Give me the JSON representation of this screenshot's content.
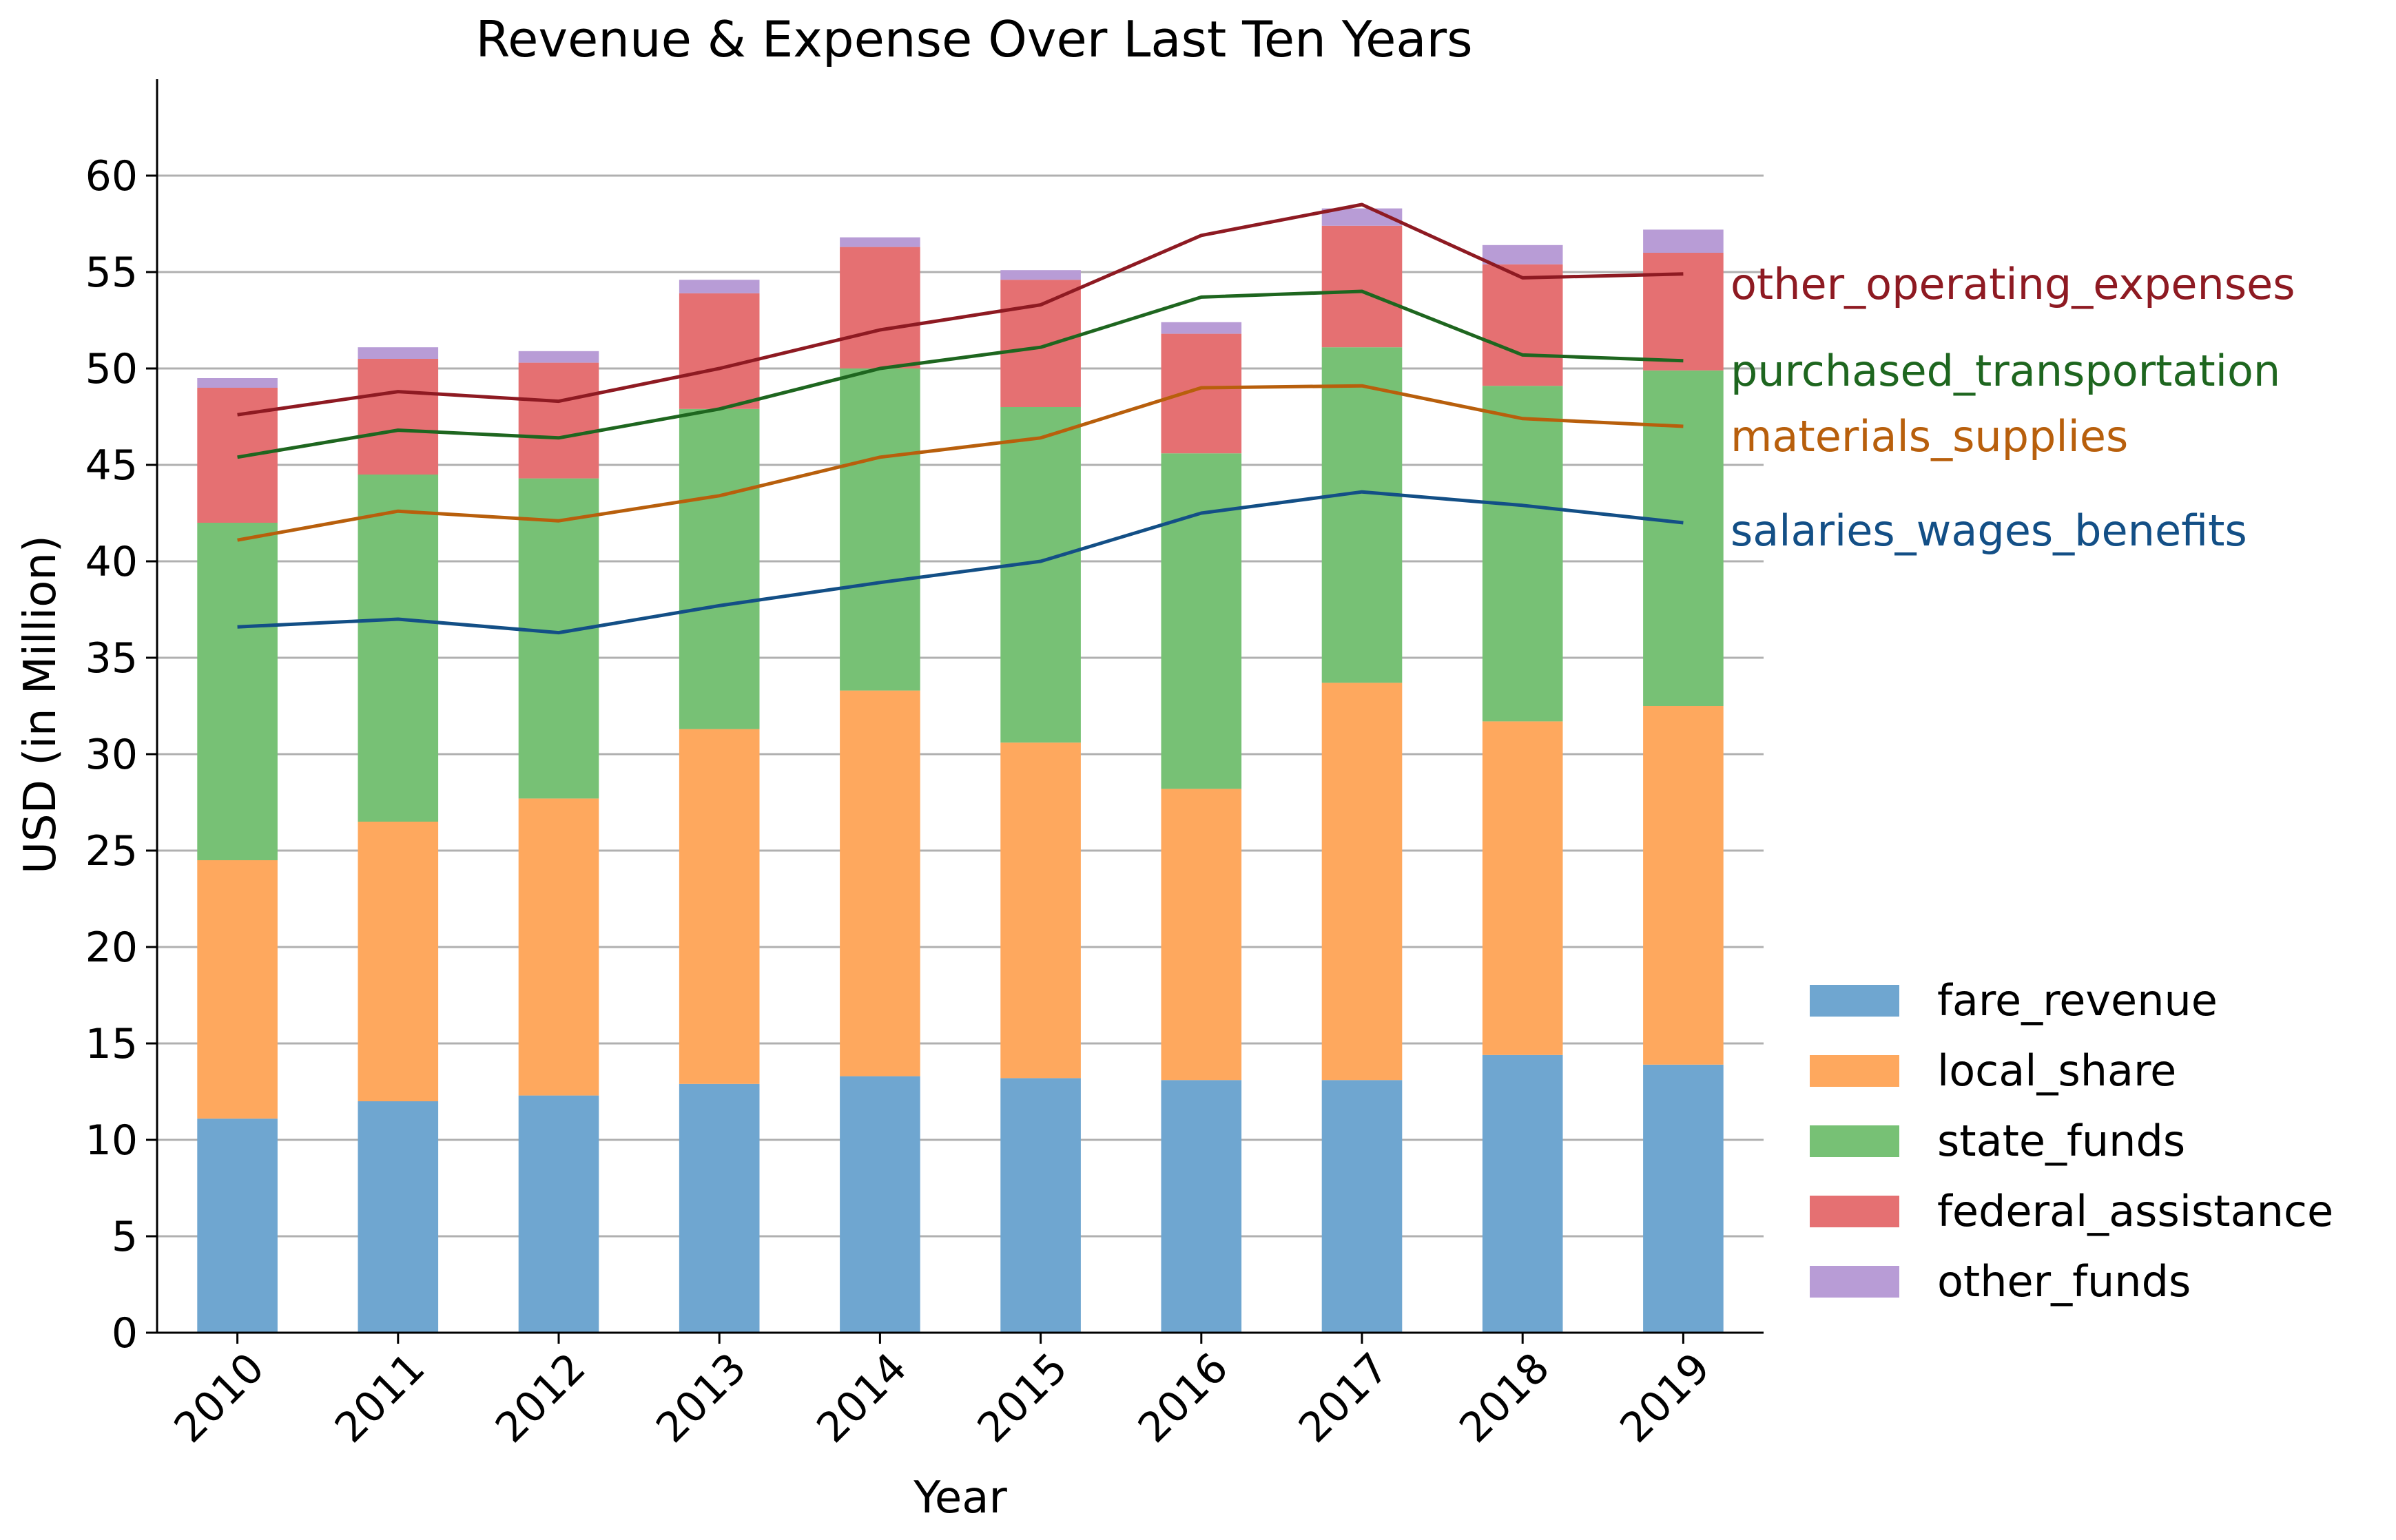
{
  "chart_data": {
    "type": "bar",
    "title": "Revenue & Expense Over Last Ten Years",
    "xlabel": "Year",
    "ylabel": "USD (in Million)",
    "ylim": [
      0,
      65
    ],
    "yticks": [
      0,
      5,
      10,
      15,
      20,
      25,
      30,
      35,
      40,
      45,
      50,
      55,
      60
    ],
    "grid": "horizontal",
    "legend_position": "bottom-right",
    "categories": [
      "2010",
      "2011",
      "2012",
      "2013",
      "2014",
      "2015",
      "2016",
      "2017",
      "2018",
      "2019"
    ],
    "stacked_series": [
      {
        "name": "fare_revenue",
        "color": "#6fa6d0",
        "values": [
          11.1,
          12.0,
          12.3,
          12.9,
          13.3,
          13.2,
          13.1,
          13.1,
          14.4,
          13.9
        ]
      },
      {
        "name": "local_share",
        "color": "#fea85e",
        "values": [
          13.4,
          14.5,
          15.4,
          18.4,
          20.0,
          17.4,
          15.1,
          20.6,
          17.3,
          18.6
        ]
      },
      {
        "name": "state_funds",
        "color": "#77c175",
        "values": [
          17.5,
          18.0,
          16.6,
          16.6,
          16.7,
          17.4,
          17.4,
          17.4,
          17.4,
          17.4
        ]
      },
      {
        "name": "federal_assistance",
        "color": "#e57072",
        "values": [
          7.0,
          6.0,
          6.0,
          6.0,
          6.3,
          6.6,
          6.2,
          6.3,
          6.3,
          6.1
        ]
      },
      {
        "name": "other_funds",
        "color": "#b89cd6",
        "values": [
          0.5,
          0.6,
          0.6,
          0.7,
          0.5,
          0.5,
          0.6,
          0.9,
          1.0,
          1.2
        ]
      }
    ],
    "line_series": [
      {
        "name": "salaries_wages_benefits",
        "color": "#134f86",
        "values": [
          36.6,
          37.0,
          36.3,
          37.7,
          38.9,
          40.0,
          42.5,
          43.6,
          42.9,
          42.0
        ]
      },
      {
        "name": "materials_supplies",
        "color": "#b85f0c",
        "values": [
          41.1,
          42.6,
          42.1,
          43.4,
          45.4,
          46.4,
          49.0,
          49.1,
          47.4,
          47.0
        ]
      },
      {
        "name": "purchased_transportation",
        "color": "#1e661f",
        "values": [
          45.4,
          46.8,
          46.4,
          47.9,
          50.0,
          51.1,
          53.7,
          54.0,
          50.7,
          50.4
        ]
      },
      {
        "name": "other_operating_expenses",
        "color": "#8e1a22",
        "values": [
          47.6,
          48.8,
          48.3,
          50.0,
          52.0,
          53.3,
          56.9,
          58.5,
          54.7,
          54.9
        ]
      }
    ],
    "colors": {
      "axis": "#000000",
      "grid": "#b0b0b0"
    }
  }
}
